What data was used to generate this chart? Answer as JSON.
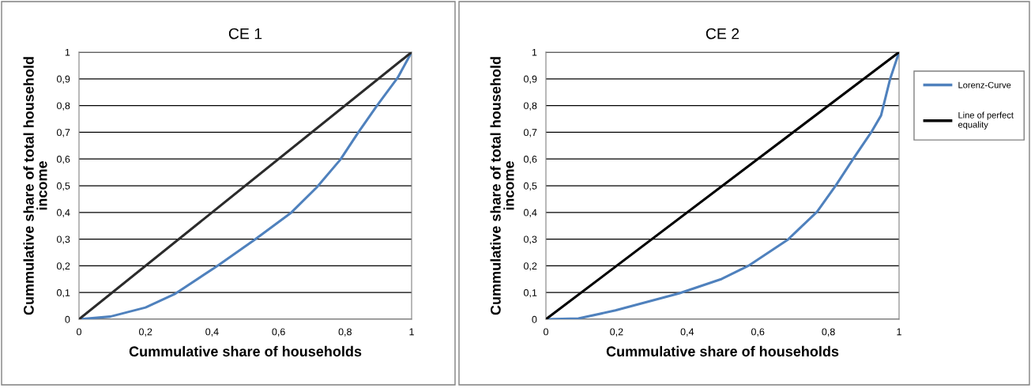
{
  "chart_data": [
    {
      "type": "line",
      "title": "CE 1",
      "xlabel": "Cummulative share of households",
      "ylabel": "Cummulative share of total household income",
      "xlim": [
        0,
        1
      ],
      "ylim": [
        0,
        1
      ],
      "xticks": [
        0,
        {
          "value": 0.2,
          "label": "0,2"
        },
        {
          "value": 0.4,
          "label": "0,4"
        },
        {
          "value": 0.6,
          "label": "0,6"
        },
        {
          "value": 0.8,
          "label": "0,8"
        },
        1
      ],
      "yticks": [
        0,
        {
          "value": 0.1,
          "label": "0,1"
        },
        {
          "value": 0.2,
          "label": "0,2"
        },
        {
          "value": 0.3,
          "label": "0,3"
        },
        {
          "value": 0.4,
          "label": "0,4"
        },
        {
          "value": 0.5,
          "label": "0,5"
        },
        {
          "value": 0.6,
          "label": "0,6"
        },
        {
          "value": 0.7,
          "label": "0,7"
        },
        {
          "value": 0.8,
          "label": "0,8"
        },
        {
          "value": 0.9,
          "label": "0,9"
        },
        1
      ],
      "grid": "y",
      "legend": false,
      "marker": "none",
      "series": [
        {
          "color": "#4f81bd",
          "x": [
            0,
            0.094,
            0.2,
            0.29,
            0.416,
            0.526,
            0.636,
            0.715,
            0.786,
            0.84,
            0.896,
            0.958,
            1
          ],
          "values": [
            0,
            0.01,
            0.044,
            0.096,
            0.2,
            0.296,
            0.397,
            0.494,
            0.598,
            0.7,
            0.8,
            0.904,
            1
          ]
        },
        {
          "color": "#2b2b2b",
          "x": [
            0,
            1
          ],
          "values": [
            0,
            1
          ]
        }
      ]
    },
    {
      "type": "line",
      "title": "CE 2",
      "xlabel": "Cummulative share of households",
      "ylabel": "Cummulative share of total household income",
      "xlim": [
        0,
        1
      ],
      "ylim": [
        0,
        1
      ],
      "xticks": [
        0,
        {
          "value": 0.2,
          "label": "0,2"
        },
        {
          "value": 0.4,
          "label": "0,4"
        },
        {
          "value": 0.6,
          "label": "0,6"
        },
        {
          "value": 0.8,
          "label": "0,8"
        },
        1
      ],
      "yticks": [
        0,
        {
          "value": 0.1,
          "label": "0,1"
        },
        {
          "value": 0.2,
          "label": "0,2"
        },
        {
          "value": 0.3,
          "label": "0,3"
        },
        {
          "value": 0.4,
          "label": "0,4"
        },
        {
          "value": 0.5,
          "label": "0,5"
        },
        {
          "value": 0.6,
          "label": "0,6"
        },
        {
          "value": 0.7,
          "label": "0,7"
        },
        {
          "value": 0.8,
          "label": "0,8"
        },
        {
          "value": 0.9,
          "label": "0,9"
        },
        1
      ],
      "grid": "y",
      "legend": "right",
      "marker": "none",
      "series": [
        {
          "name": "Lorenz-Curve",
          "color": "#4f81bd",
          "x": [
            0,
            0.092,
            0.197,
            0.377,
            0.498,
            0.573,
            0.686,
            0.768,
            0.821,
            0.87,
            0.923,
            0.949,
            0.975,
            1
          ],
          "values": [
            0,
            0.003,
            0.033,
            0.097,
            0.151,
            0.2,
            0.299,
            0.403,
            0.501,
            0.6,
            0.704,
            0.763,
            0.901,
            1
          ]
        },
        {
          "name": "Line of perfect equality",
          "color": "#000000",
          "x": [
            0,
            1
          ],
          "values": [
            0,
            1
          ]
        }
      ]
    }
  ]
}
